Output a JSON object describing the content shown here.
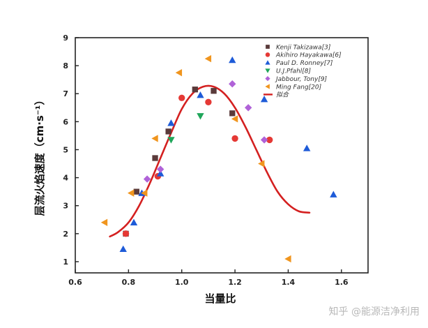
{
  "watermark": "知乎 @能源洁净利用",
  "chart_data": {
    "type": "scatter",
    "xlabel": "当量比",
    "ylabel": "层流火焰速度（cm·s⁻¹）",
    "xlim": [
      0.6,
      1.7
    ],
    "ylim": [
      0.6,
      9.0
    ],
    "xticks": [
      0.6,
      0.8,
      1.0,
      1.2,
      1.4,
      1.6
    ],
    "xtick_labels": [
      "0.6",
      "0.8",
      "1.0",
      "1.2",
      "1.4",
      "1.6"
    ],
    "yticks": [
      1,
      2,
      3,
      4,
      5,
      6,
      7,
      8,
      9
    ],
    "ytick_labels": [
      "1",
      "2",
      "3",
      "4",
      "5",
      "6",
      "7",
      "8",
      "9"
    ],
    "legend_position": "top-right",
    "series": [
      {
        "name": "Kenji Takizawa[3]",
        "marker": "square",
        "color": "#5a3a3a",
        "x": [
          0.79,
          0.83,
          0.9,
          0.95,
          1.05,
          1.12,
          1.19
        ],
        "y": [
          2.0,
          3.5,
          4.7,
          5.65,
          7.15,
          7.1,
          6.3
        ]
      },
      {
        "name": "Akihiro Hayakawa[6]",
        "marker": "circle",
        "color": "#e53935",
        "x": [
          0.79,
          0.91,
          1.0,
          1.1,
          1.2,
          1.33
        ],
        "y": [
          2.0,
          4.05,
          6.85,
          6.7,
          5.4,
          5.35
        ]
      },
      {
        "name": "Paul D. Ronney[7]",
        "marker": "triangle-up",
        "color": "#1e5bd8",
        "x": [
          0.78,
          0.82,
          0.85,
          0.92,
          0.96,
          1.07,
          1.19,
          1.31,
          1.47,
          1.57
        ],
        "y": [
          1.45,
          2.4,
          3.45,
          4.15,
          5.95,
          6.95,
          8.2,
          6.8,
          5.05,
          3.4
        ]
      },
      {
        "name": "U.J.Pfahl[8]",
        "marker": "triangle-down",
        "color": "#1fa65a",
        "x": [
          0.96,
          1.07
        ],
        "y": [
          5.35,
          6.2
        ]
      },
      {
        "name": "Jabbour, Tony[9]",
        "marker": "diamond",
        "color": "#b062d8",
        "x": [
          0.87,
          0.92,
          1.19,
          1.25,
          1.31
        ],
        "y": [
          3.95,
          4.3,
          7.35,
          6.5,
          5.35
        ]
      },
      {
        "name": "Ming Fang[20]",
        "marker": "triangle-left",
        "color": "#f0951e",
        "x": [
          0.71,
          0.81,
          0.86,
          0.9,
          0.99,
          1.1,
          1.2,
          1.3,
          1.4
        ],
        "y": [
          2.4,
          3.45,
          3.45,
          5.4,
          7.75,
          8.25,
          6.1,
          4.5,
          1.1
        ]
      }
    ],
    "fit": {
      "name": "拟合",
      "color": "#d42020",
      "x": [
        0.73,
        0.76,
        0.8,
        0.84,
        0.88,
        0.92,
        0.96,
        1.0,
        1.04,
        1.08,
        1.12,
        1.16,
        1.2,
        1.24,
        1.28,
        1.32,
        1.36,
        1.4,
        1.44,
        1.48
      ],
      "y": [
        1.9,
        2.05,
        2.4,
        3.0,
        3.8,
        4.7,
        5.6,
        6.45,
        7.0,
        7.25,
        7.25,
        7.0,
        6.5,
        5.8,
        5.0,
        4.2,
        3.5,
        3.05,
        2.8,
        2.75
      ]
    }
  }
}
